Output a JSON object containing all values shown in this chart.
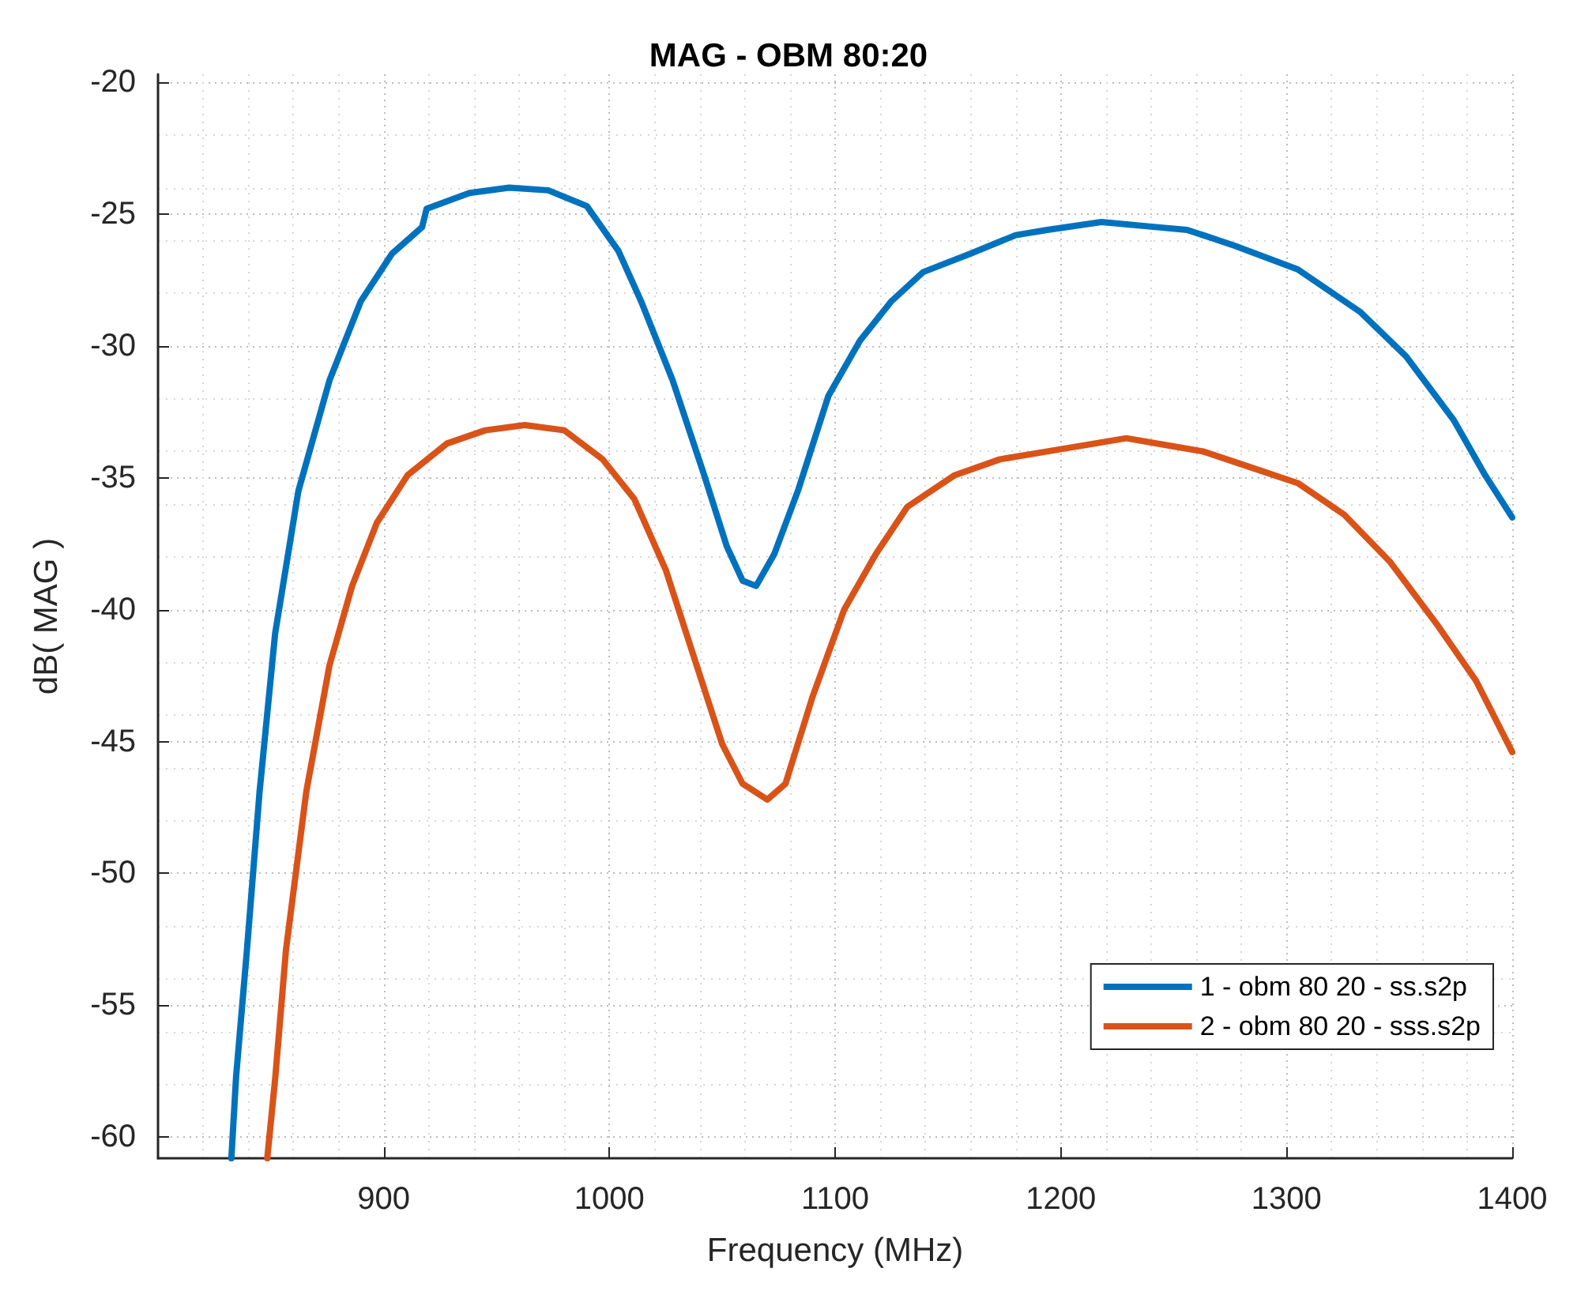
{
  "chart_data": {
    "type": "line",
    "title": "MAG - OBM 80:20",
    "xlabel": "Frequency (MHz)",
    "ylabel": "dB( MAG )",
    "xlim": [
      800,
      1400
    ],
    "xticks": [
      900,
      1000,
      1100,
      1200,
      1300,
      1400
    ],
    "ylim": [
      -60.8,
      -19.7
    ],
    "yticks": [
      -60,
      -55,
      -50,
      -45,
      -40,
      -35,
      -30,
      -25,
      -20
    ],
    "grid": true,
    "legend": "bottom right",
    "marker": "none",
    "line_style": "solid",
    "series": [
      {
        "name": "1 - obm 80 20 - ss.s2p",
        "color": "#0072bd",
        "x": [
          832.5,
          834.6,
          839.4,
          845,
          851.9,
          862.2,
          876,
          889.9,
          903.7,
          917,
          919,
          938,
          955.6,
          972.9,
          990,
          1004,
          1014,
          1028,
          1042,
          1052,
          1059,
          1065,
          1073,
          1083.5,
          1097,
          1111,
          1125,
          1139,
          1160,
          1180,
          1194,
          1218,
          1243,
          1256,
          1277,
          1305,
          1332.5,
          1353,
          1374,
          1388,
          1400
        ],
        "values": [
          -60.8,
          -57.7,
          -52.9,
          -46.9,
          -40.9,
          -35.5,
          -31.3,
          -28.3,
          -26.5,
          -25.5,
          -24.8,
          -24.2,
          -24.0,
          -24.1,
          -24.7,
          -26.4,
          -28.3,
          -31.3,
          -34.9,
          -37.6,
          -38.9,
          -39.1,
          -37.9,
          -35.5,
          -31.9,
          -29.8,
          -28.3,
          -27.2,
          -26.5,
          -25.8,
          -25.6,
          -25.3,
          -25.5,
          -25.6,
          -26.2,
          -27.1,
          -28.7,
          -30.4,
          -32.8,
          -34.9,
          -36.5
        ]
      },
      {
        "name": "2 - obm 80 20 - sss.s2p",
        "color": "#d95319",
        "x": [
          848.4,
          852,
          856.7,
          865.7,
          876,
          886,
          897,
          910.6,
          928,
          945,
          962.5,
          980,
          997,
          1011,
          1025,
          1038.6,
          1050,
          1059,
          1070,
          1078,
          1090,
          1104,
          1118,
          1132,
          1153,
          1173,
          1194,
          1215,
          1229,
          1249.5,
          1263,
          1284,
          1305,
          1325.6,
          1346,
          1367,
          1384,
          1400
        ],
        "values": [
          -60.8,
          -57.7,
          -52.9,
          -46.9,
          -42.1,
          -39.1,
          -36.7,
          -34.9,
          -33.7,
          -33.2,
          -33.0,
          -33.2,
          -34.3,
          -35.8,
          -38.5,
          -42.1,
          -45.1,
          -46.6,
          -47.2,
          -46.6,
          -43.3,
          -40.0,
          -37.9,
          -36.1,
          -34.9,
          -34.3,
          -34.0,
          -33.7,
          -33.5,
          -33.8,
          -34.0,
          -34.6,
          -35.2,
          -36.4,
          -38.2,
          -40.6,
          -42.7,
          -45.4
        ]
      }
    ]
  }
}
